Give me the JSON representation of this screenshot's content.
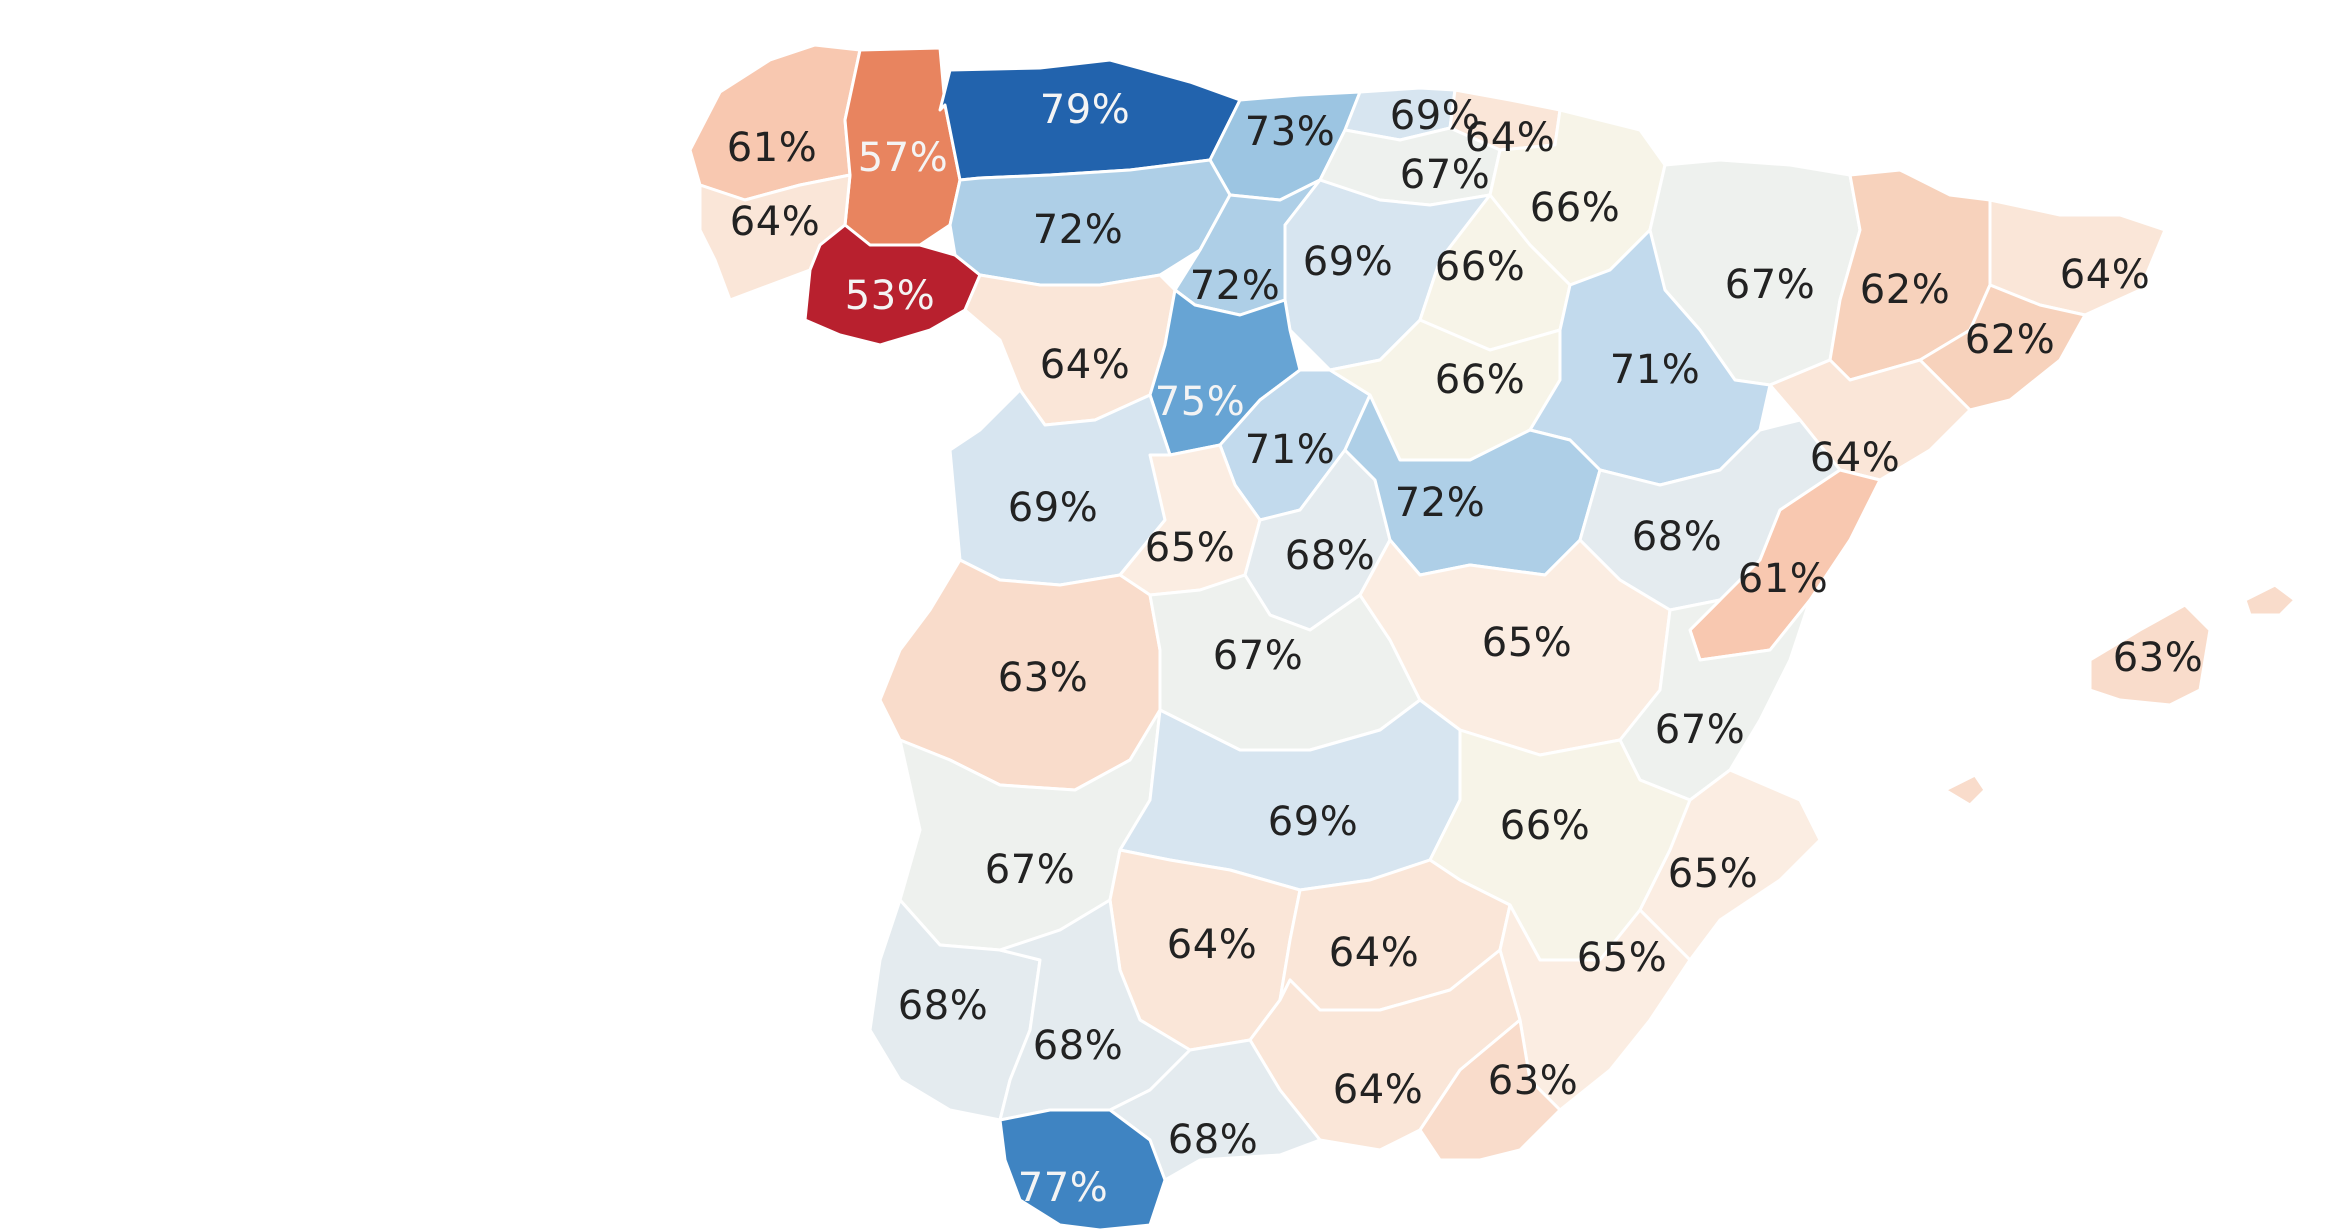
{
  "colors": {
    "background": "#ffffff",
    "border": "#ffffff",
    "scale": {
      "53": "#b8202e",
      "57": "#e8845f",
      "61": "#f8c8b0",
      "62": "#f7d2bc",
      "63": "#f9dccb",
      "64": "#fae6d8",
      "65": "#fbede2",
      "66": "#f7f4e8",
      "67": "#eef1ee",
      "68": "#e4ebef",
      "69": "#d7e5f0",
      "71": "#c2daed",
      "72": "#aecfe7",
      "73": "#9cc5e2",
      "75": "#67a4d4",
      "77": "#3f84c2",
      "79": "#2263ad"
    },
    "label_light": "#f4f4f4",
    "label_dark": "#222222"
  },
  "regions": [
    {
      "id": "a-coruna",
      "label": "61%",
      "value": 61
    },
    {
      "id": "lugo",
      "label": "57%",
      "value": 57
    },
    {
      "id": "pontevedra",
      "label": "64%",
      "value": 64
    },
    {
      "id": "ourense",
      "label": "53%",
      "value": 53
    },
    {
      "id": "asturias",
      "label": "79%",
      "value": 79
    },
    {
      "id": "cantabria",
      "label": "73%",
      "value": 73
    },
    {
      "id": "bizkaia",
      "label": "69%",
      "value": 69
    },
    {
      "id": "gipuzkoa",
      "label": "64%",
      "value": 64
    },
    {
      "id": "araba",
      "label": "67%",
      "value": 67
    },
    {
      "id": "navarra",
      "label": "66%",
      "value": 66
    },
    {
      "id": "leon",
      "label": "72%",
      "value": 72
    },
    {
      "id": "palencia",
      "label": "72%",
      "value": 72
    },
    {
      "id": "burgos",
      "label": "69%",
      "value": 69
    },
    {
      "id": "la-rioja",
      "label": "66%",
      "value": 66
    },
    {
      "id": "huesca",
      "label": "67%",
      "value": 67
    },
    {
      "id": "lleida",
      "label": "62%",
      "value": 62
    },
    {
      "id": "girona",
      "label": "64%",
      "value": 64
    },
    {
      "id": "barcelona",
      "label": "62%",
      "value": 62
    },
    {
      "id": "zamora",
      "label": "64%",
      "value": 64
    },
    {
      "id": "valladolid",
      "label": "75%",
      "value": 75
    },
    {
      "id": "segovia",
      "label": "71%",
      "value": 71
    },
    {
      "id": "soria",
      "label": "66%",
      "value": 66
    },
    {
      "id": "zaragoza",
      "label": "71%",
      "value": 71
    },
    {
      "id": "tarragona",
      "label": "64%",
      "value": 64
    },
    {
      "id": "salamanca",
      "label": "69%",
      "value": 69
    },
    {
      "id": "avila",
      "label": "65%",
      "value": 65
    },
    {
      "id": "madrid",
      "label": "68%",
      "value": 68
    },
    {
      "id": "guadalajara",
      "label": "72%",
      "value": 72
    },
    {
      "id": "teruel",
      "label": "68%",
      "value": 68
    },
    {
      "id": "castellon",
      "label": "61%",
      "value": 61
    },
    {
      "id": "caceres",
      "label": "63%",
      "value": 63
    },
    {
      "id": "toledo",
      "label": "67%",
      "value": 67
    },
    {
      "id": "cuenca",
      "label": "65%",
      "value": 65
    },
    {
      "id": "valencia",
      "label": "67%",
      "value": 67
    },
    {
      "id": "badajoz",
      "label": "67%",
      "value": 67
    },
    {
      "id": "ciudad-real",
      "label": "69%",
      "value": 69
    },
    {
      "id": "albacete",
      "label": "66%",
      "value": 66
    },
    {
      "id": "alicante",
      "label": "65%",
      "value": 65
    },
    {
      "id": "cordoba",
      "label": "64%",
      "value": 64
    },
    {
      "id": "jaen",
      "label": "64%",
      "value": 64
    },
    {
      "id": "murcia",
      "label": "65%",
      "value": 65
    },
    {
      "id": "huelva",
      "label": "68%",
      "value": 68
    },
    {
      "id": "sevilla",
      "label": "68%",
      "value": 68
    },
    {
      "id": "granada",
      "label": "64%",
      "value": 64
    },
    {
      "id": "almeria",
      "label": "63%",
      "value": 63
    },
    {
      "id": "malaga",
      "label": "68%",
      "value": 68
    },
    {
      "id": "cadiz",
      "label": "77%",
      "value": 77
    },
    {
      "id": "baleares",
      "label": "63%",
      "value": 63
    }
  ]
}
